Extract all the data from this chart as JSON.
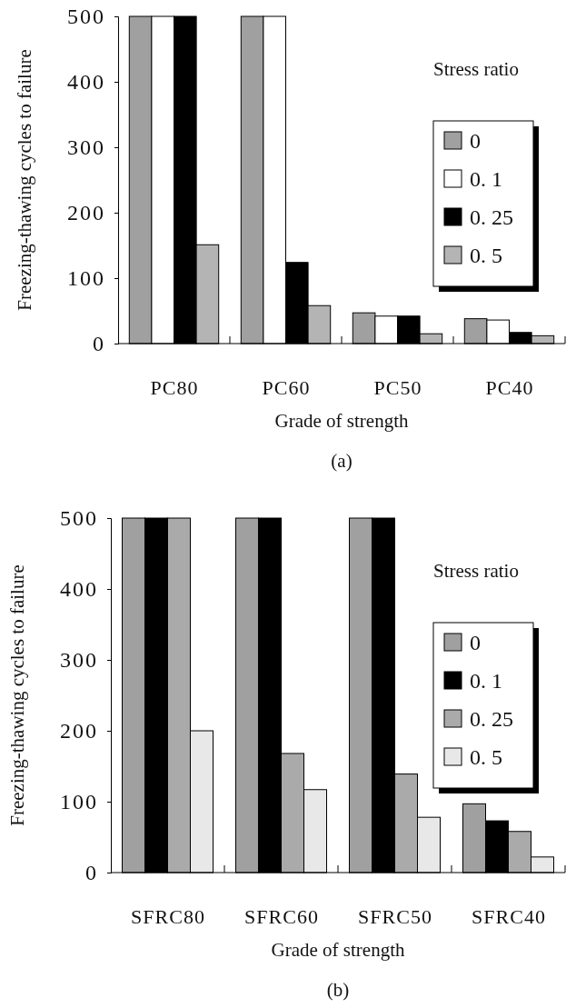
{
  "chart_data": [
    {
      "type": "bar",
      "xlabel": "Grade of strength",
      "ylabel": "Freezing-thawing cycles to failure",
      "legend_title": "Stress ratio",
      "legend": "right",
      "categories": [
        "PC80",
        "PC60",
        "PC50",
        "PC40"
      ],
      "ylim": [
        0,
        500
      ],
      "yticks": [
        0,
        100,
        200,
        300,
        400,
        500
      ],
      "annotations": [
        "(a)"
      ],
      "series": [
        {
          "name": "0",
          "color": "#a0a0a0",
          "values": [
            500,
            500,
            47,
            38
          ]
        },
        {
          "name": "0. 1",
          "color": "#ffffff",
          "values": [
            500,
            500,
            42,
            36
          ]
        },
        {
          "name": "0. 25",
          "color": "#000000",
          "values": [
            500,
            124,
            42,
            17
          ]
        },
        {
          "name": "0. 5",
          "color": "#b4b4b4",
          "values": [
            151,
            58,
            15,
            12
          ]
        }
      ]
    },
    {
      "type": "bar",
      "xlabel": "Grade of strength",
      "ylabel": "Freezing-thawing cycles to failure",
      "legend_title": "Stress ratio",
      "legend": "right",
      "categories": [
        "SFRC80",
        "SFRC60",
        "SFRC50",
        "SFRC40"
      ],
      "ylim": [
        0,
        500
      ],
      "yticks": [
        0,
        100,
        200,
        300,
        400,
        500
      ],
      "annotations": [
        "(b)"
      ],
      "series": [
        {
          "name": "0",
          "color": "#a0a0a0",
          "values": [
            500,
            500,
            500,
            97
          ]
        },
        {
          "name": "0. 1",
          "color": "#000000",
          "values": [
            500,
            500,
            500,
            73
          ]
        },
        {
          "name": "0. 25",
          "color": "#aaaaaa",
          "values": [
            500,
            168,
            139,
            58
          ]
        },
        {
          "name": "0. 5",
          "color": "#e8e8e8",
          "values": [
            200,
            117,
            78,
            22
          ]
        }
      ]
    }
  ]
}
